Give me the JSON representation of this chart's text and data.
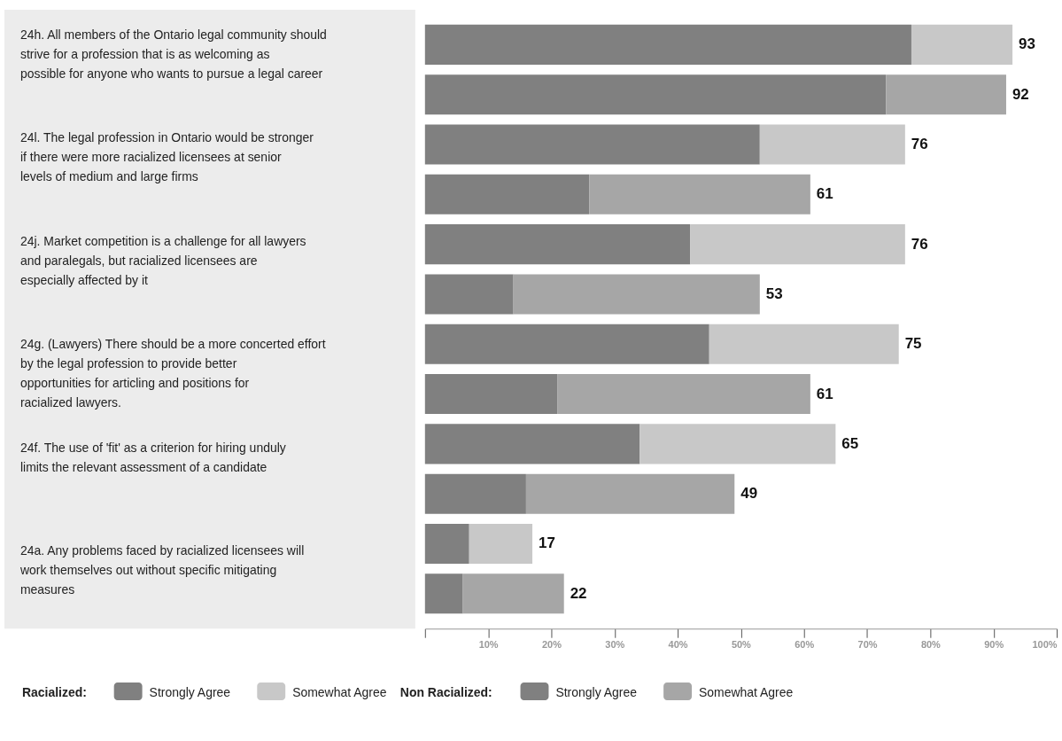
{
  "chart_data": {
    "type": "bar",
    "orientation": "horizontal",
    "stacked": true,
    "categories": [
      "24h. All members of the Ontario legal community should strive for a profession that is as welcoming as possible for anyone who wants to pursue a legal career",
      null,
      "24l. The legal profession in Ontario would be stronger if there were more racialized licensees at senior levels of medium and large firms",
      null,
      "24j. Market competition is a challenge for all lawyers and paralegals, but racialized licensees are especially affected by it",
      null,
      "24g. (Lawyers) There should be a more concerted effort by the legal profession to provide better opportunities for articling and positions for racialized lawyers.",
      null,
      "24f. The use of 'fit' as a criterion for hiring unduly limits the relevant assessment of a candidate",
      null,
      "24a. Any problems faced by racialized licensees will work themselves out without specific mitigating measures",
      null
    ],
    "series": [
      {
        "name": "Strongly Agree",
        "color": "#808080",
        "values": [
          77,
          null,
          53,
          null,
          42,
          null,
          45,
          null,
          34,
          null,
          7,
          null
        ]
      },
      {
        "name": "Somewhat Agree",
        "color": "#c8c8c8",
        "values": [
          16,
          null,
          23,
          null,
          34,
          null,
          30,
          null,
          31,
          null,
          10,
          null
        ]
      },
      {
        "name": "Strongly Agree",
        "color": "#808080",
        "values": [
          null,
          73,
          null,
          26,
          null,
          14,
          null,
          21,
          null,
          16,
          null,
          6
        ]
      },
      {
        "name": "Somewhat Agree",
        "color": "#a6a6a6",
        "values": [
          null,
          19,
          null,
          35,
          null,
          39,
          null,
          40,
          null,
          33,
          null,
          16
        ]
      }
    ],
    "totals": [
      "93",
      "92",
      "76",
      "61",
      "76",
      "53",
      "75",
      "61",
      "65",
      "49",
      "17",
      "22"
    ],
    "annotations": [
      "Racialized:",
      "Non Racialized:"
    ],
    "xlim": [
      0,
      100
    ],
    "xticks": [
      {
        "value": 0,
        "label": null
      },
      {
        "value": 10,
        "label": "10%"
      },
      {
        "value": 20,
        "label": "20%"
      },
      {
        "value": 30,
        "label": "30%"
      },
      {
        "value": 40,
        "label": "40%"
      },
      {
        "value": 50,
        "label": "50%"
      },
      {
        "value": 60,
        "label": "60%"
      },
      {
        "value": 70,
        "label": "70%"
      },
      {
        "value": 80,
        "label": "80%"
      },
      {
        "value": 90,
        "label": "90%"
      },
      {
        "value": 100,
        "label": "100%"
      }
    ],
    "grid": false,
    "legend": "bottom"
  }
}
